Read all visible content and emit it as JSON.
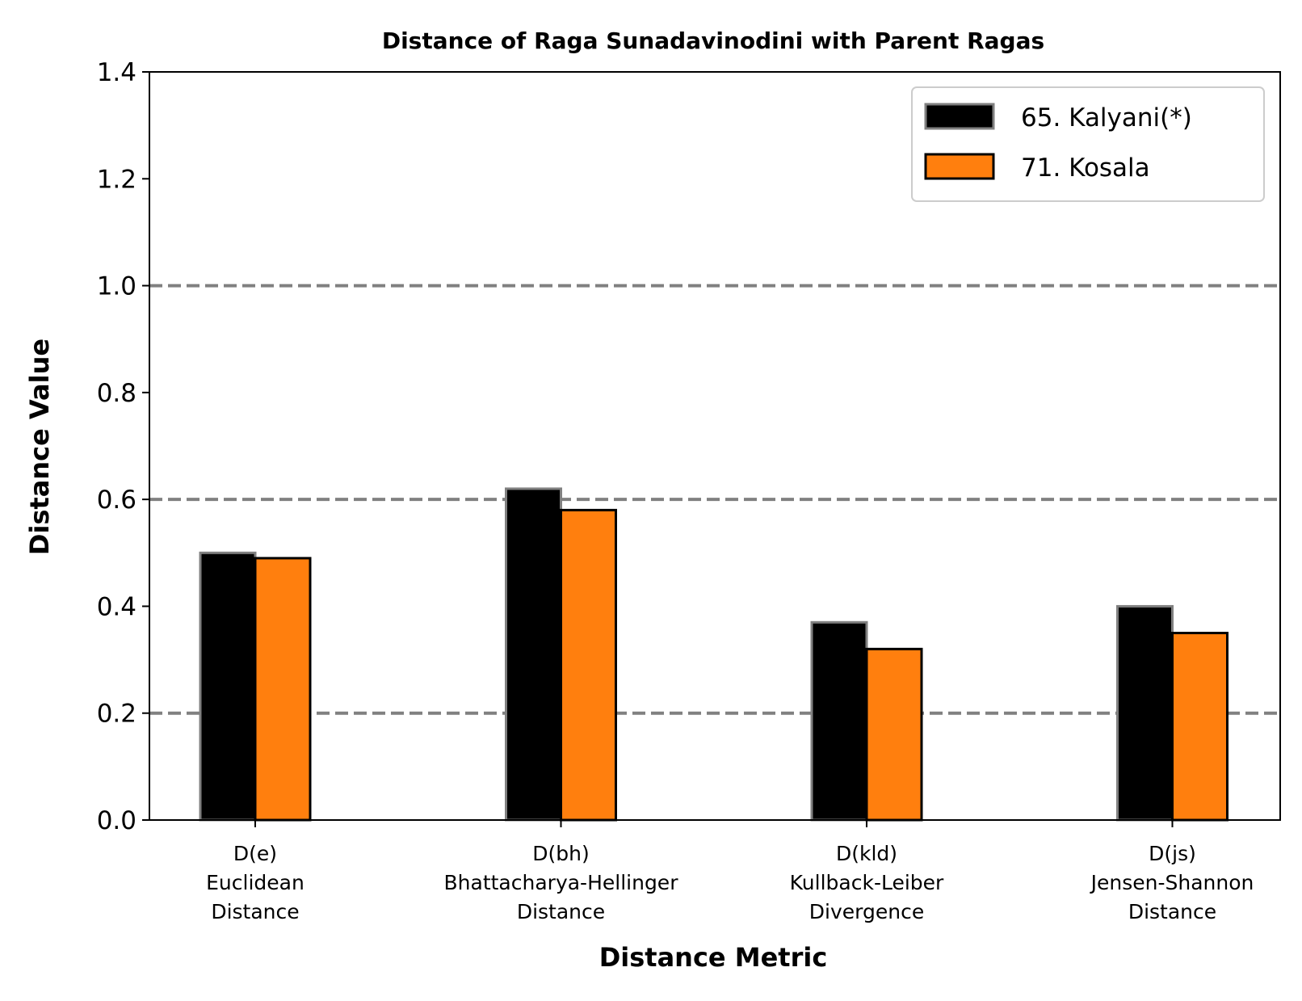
{
  "chart_data": {
    "type": "bar",
    "title": "Distance of Raga Sunadavinodini with Parent Ragas",
    "xlabel": "Distance Metric",
    "ylabel": "Distance Value",
    "ylim": [
      0,
      1.4
    ],
    "yticks": [
      "0.0",
      "0.2",
      "0.4",
      "0.6",
      "0.8",
      "1.0",
      "1.2",
      "1.4"
    ],
    "reference_lines": [
      0.2,
      0.6,
      1.0
    ],
    "grid": false,
    "legend_position": "top-right",
    "categories": [
      [
        "D(e)",
        "Euclidean",
        "Distance"
      ],
      [
        "D(bh)",
        "Bhattacharya-Hellinger",
        "Distance"
      ],
      [
        "D(kld)",
        "Kullback-Leiber",
        "Divergence"
      ],
      [
        "D(js)",
        "Jensen-Shannon",
        "Distance"
      ]
    ],
    "series": [
      {
        "name": "65. Kalyani(*)",
        "values": [
          0.5,
          0.62,
          0.37,
          0.4
        ],
        "color": "#000000",
        "edge": "#808080"
      },
      {
        "name": "71. Kosala",
        "values": [
          0.49,
          0.58,
          0.32,
          0.35
        ],
        "color": "#ff7f0e",
        "edge": "#000000"
      }
    ]
  }
}
